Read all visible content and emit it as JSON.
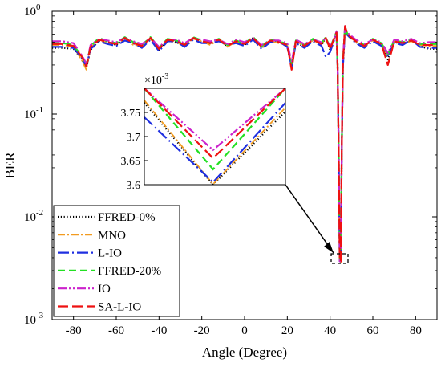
{
  "chart_data": {
    "type": "line",
    "title": "",
    "xlabel": "Angle (Degree)",
    "ylabel": "BER",
    "xlim": [
      -90,
      90
    ],
    "ylim": [
      0.001,
      1
    ],
    "yscale": "log",
    "xticks": [
      -80,
      -60,
      -40,
      -20,
      0,
      20,
      40,
      60,
      80
    ],
    "xtick_labels": [
      "-80",
      "-60",
      "-40",
      "-20",
      "0",
      "20",
      "40",
      "60",
      "80"
    ],
    "yticks": [
      0.001,
      0.01,
      0.1,
      1
    ],
    "ytick_labels": [
      {
        "base": "10",
        "exp": "-3"
      },
      {
        "base": "10",
        "exp": "-2"
      },
      {
        "base": "10",
        "exp": "-1"
      },
      {
        "base": "10",
        "exp": "0"
      }
    ],
    "legend_position": "bottom-left",
    "grid": false,
    "x": [
      -90,
      -85,
      -80,
      -76,
      -74,
      -72,
      -68,
      -64,
      -60,
      -56,
      -52,
      -48,
      -44,
      -40,
      -36,
      -32,
      -28,
      -24,
      -20,
      -16,
      -12,
      -8,
      -4,
      0,
      4,
      8,
      12,
      16,
      20,
      22,
      24,
      28,
      32,
      36,
      38,
      40,
      42,
      43,
      43.5,
      44,
      44.5,
      45,
      45.5,
      46,
      47,
      48,
      52,
      56,
      60,
      64,
      67,
      70,
      74,
      78,
      82,
      86,
      90
    ],
    "series": [
      {
        "name": "FFRED-0%",
        "color": "#000000",
        "dash": "1.2,2.6",
        "width": 2.2,
        "values": [
          0.44,
          0.44,
          0.43,
          0.34,
          0.28,
          0.42,
          0.52,
          0.5,
          0.47,
          0.53,
          0.48,
          0.45,
          0.55,
          0.42,
          0.53,
          0.5,
          0.46,
          0.55,
          0.5,
          0.48,
          0.52,
          0.46,
          0.5,
          0.47,
          0.55,
          0.44,
          0.52,
          0.5,
          0.46,
          0.28,
          0.5,
          0.45,
          0.53,
          0.47,
          0.55,
          0.42,
          0.55,
          0.6,
          0.3,
          0.05,
          0.0036,
          0.0036,
          0.05,
          0.3,
          0.68,
          0.6,
          0.5,
          0.45,
          0.53,
          0.47,
          0.34,
          0.5,
          0.48,
          0.52,
          0.46,
          0.43,
          0.43
        ]
      },
      {
        "name": "MNO",
        "color": "#f29b20",
        "dash": "9,3,2,3",
        "width": 1.8,
        "values": [
          0.47,
          0.47,
          0.45,
          0.33,
          0.27,
          0.44,
          0.53,
          0.49,
          0.48,
          0.54,
          0.47,
          0.46,
          0.54,
          0.43,
          0.52,
          0.49,
          0.47,
          0.54,
          0.51,
          0.47,
          0.53,
          0.45,
          0.51,
          0.48,
          0.54,
          0.45,
          0.51,
          0.49,
          0.47,
          0.3,
          0.51,
          0.46,
          0.52,
          0.48,
          0.54,
          0.43,
          0.54,
          0.62,
          0.28,
          0.05,
          0.0036,
          0.0036,
          0.05,
          0.32,
          0.7,
          0.58,
          0.51,
          0.46,
          0.52,
          0.48,
          0.36,
          0.51,
          0.49,
          0.51,
          0.47,
          0.46,
          0.46
        ]
      },
      {
        "name": "L-IO",
        "color": "#1f2fe0",
        "dash": "14,4,2,4",
        "width": 2.2,
        "values": [
          0.45,
          0.45,
          0.44,
          0.35,
          0.29,
          0.43,
          0.51,
          0.48,
          0.46,
          0.52,
          0.49,
          0.44,
          0.53,
          0.41,
          0.51,
          0.51,
          0.45,
          0.53,
          0.49,
          0.49,
          0.51,
          0.47,
          0.49,
          0.46,
          0.53,
          0.43,
          0.5,
          0.51,
          0.45,
          0.29,
          0.49,
          0.44,
          0.51,
          0.46,
          0.36,
          0.4,
          0.53,
          0.58,
          0.29,
          0.05,
          0.0036,
          0.0036,
          0.05,
          0.29,
          0.66,
          0.59,
          0.49,
          0.44,
          0.51,
          0.46,
          0.37,
          0.49,
          0.47,
          0.53,
          0.45,
          0.44,
          0.44
        ]
      },
      {
        "name": "FFRED-20%",
        "color": "#22e022",
        "dash": "9,5",
        "width": 2.2,
        "values": [
          0.49,
          0.49,
          0.47,
          0.36,
          0.3,
          0.46,
          0.55,
          0.51,
          0.49,
          0.56,
          0.5,
          0.47,
          0.56,
          0.44,
          0.54,
          0.52,
          0.48,
          0.56,
          0.52,
          0.5,
          0.54,
          0.47,
          0.52,
          0.49,
          0.56,
          0.46,
          0.53,
          0.51,
          0.48,
          0.31,
          0.52,
          0.47,
          0.54,
          0.49,
          0.56,
          0.44,
          0.56,
          0.63,
          0.31,
          0.05,
          0.0036,
          0.0036,
          0.05,
          0.33,
          0.71,
          0.61,
          0.52,
          0.47,
          0.54,
          0.49,
          0.38,
          0.52,
          0.5,
          0.53,
          0.48,
          0.48,
          0.48
        ]
      },
      {
        "name": "IO",
        "color": "#cc22cc",
        "dash": "11,3,2,3,2,3",
        "width": 2.2,
        "values": [
          0.51,
          0.51,
          0.49,
          0.37,
          0.31,
          0.47,
          0.54,
          0.52,
          0.5,
          0.55,
          0.51,
          0.48,
          0.55,
          0.45,
          0.53,
          0.53,
          0.49,
          0.55,
          0.53,
          0.51,
          0.53,
          0.48,
          0.53,
          0.5,
          0.55,
          0.47,
          0.52,
          0.52,
          0.49,
          0.32,
          0.53,
          0.48,
          0.53,
          0.5,
          0.55,
          0.45,
          0.55,
          0.64,
          0.32,
          0.05,
          0.0037,
          0.0037,
          0.05,
          0.34,
          0.72,
          0.62,
          0.53,
          0.48,
          0.53,
          0.5,
          0.39,
          0.53,
          0.51,
          0.54,
          0.49,
          0.5,
          0.5
        ]
      },
      {
        "name": "SA-L-IO",
        "color": "#ee1111",
        "dash": "13,5",
        "width": 2.2,
        "values": [
          0.48,
          0.48,
          0.46,
          0.36,
          0.29,
          0.45,
          0.53,
          0.5,
          0.48,
          0.55,
          0.49,
          0.46,
          0.55,
          0.43,
          0.53,
          0.51,
          0.47,
          0.55,
          0.51,
          0.49,
          0.53,
          0.46,
          0.51,
          0.48,
          0.55,
          0.45,
          0.52,
          0.5,
          0.47,
          0.27,
          0.51,
          0.46,
          0.53,
          0.48,
          0.55,
          0.43,
          0.55,
          0.62,
          0.3,
          0.05,
          0.0037,
          0.0037,
          0.05,
          0.31,
          0.72,
          0.6,
          0.51,
          0.46,
          0.53,
          0.48,
          0.3,
          0.51,
          0.49,
          0.52,
          0.47,
          0.47,
          0.47
        ]
      }
    ],
    "inset": {
      "multiplier": {
        "base": "10",
        "exp": "-3"
      },
      "ylim": [
        3.6,
        3.8
      ],
      "yticks": [
        3.6,
        3.65,
        3.7,
        3.75
      ],
      "ytick_labels": [
        "3.6",
        "3.65",
        "3.7",
        "3.75"
      ],
      "lines": [
        {
          "series": "FFRED-0%",
          "vertex": 3.6,
          "left_top": 3.77,
          "right_top": 3.752
        },
        {
          "series": "MNO",
          "vertex": 3.601,
          "left_top": 3.775,
          "right_top": 3.76
        },
        {
          "series": "L-IO",
          "vertex": 3.605,
          "left_top": 3.74,
          "right_top": 3.77
        },
        {
          "series": "FFRED-20%",
          "vertex": 3.632,
          "left_top": 3.8,
          "right_top": 3.8
        },
        {
          "series": "IO",
          "vertex": 3.672,
          "left_top": 3.8,
          "right_top": 3.8
        },
        {
          "series": "SA-L-IO",
          "vertex": 3.655,
          "left_top": 3.8,
          "right_top": 3.8
        }
      ]
    }
  }
}
